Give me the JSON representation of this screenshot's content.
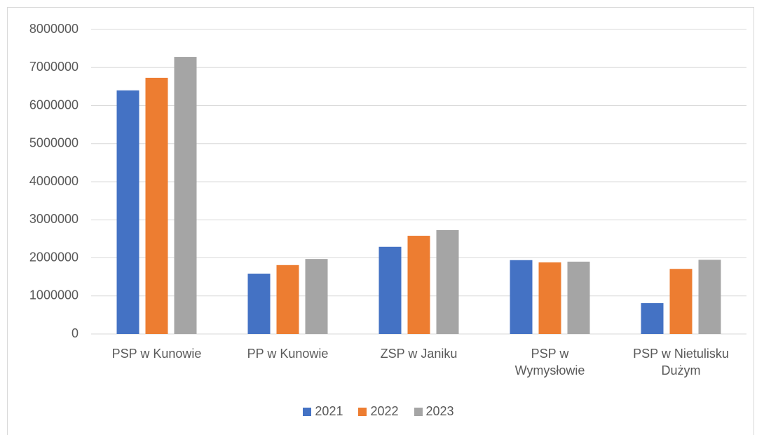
{
  "chart_data": {
    "type": "bar",
    "categories": [
      "PSP w Kunowie",
      "PP w Kunowie",
      "ZSP w Janiku",
      "PSP w Wymysłowie",
      "PSP w Nietulisku Dużym"
    ],
    "series": [
      {
        "name": "2021",
        "color": "#4472c4",
        "values": [
          6400000,
          1585000,
          2290000,
          1940000,
          810000
        ]
      },
      {
        "name": "2022",
        "color": "#ed7d31",
        "values": [
          6730000,
          1810000,
          2580000,
          1880000,
          1710000
        ]
      },
      {
        "name": "2023",
        "color": "#a5a5a5",
        "values": [
          7280000,
          1970000,
          2730000,
          1900000,
          1950000
        ]
      }
    ],
    "ylim": [
      0,
      8000000
    ],
    "yticks": [
      0,
      1000000,
      2000000,
      3000000,
      4000000,
      5000000,
      6000000,
      7000000,
      8000000
    ],
    "grid": true,
    "legend": "bottom"
  }
}
